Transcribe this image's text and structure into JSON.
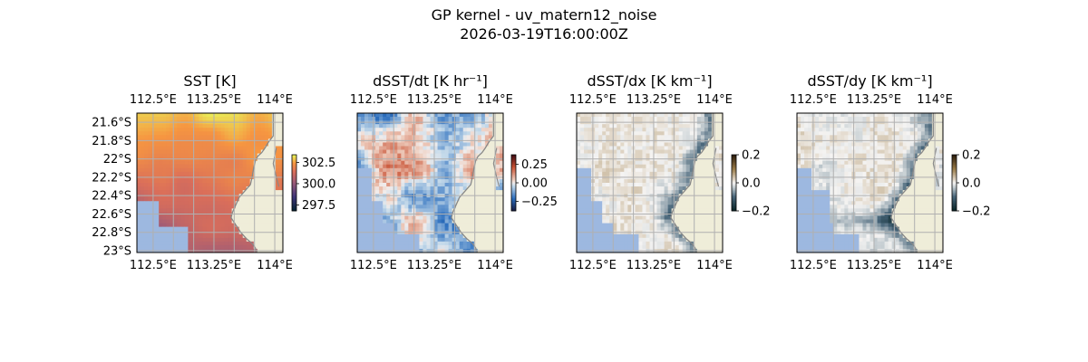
{
  "figure": {
    "title_line1": "GP kernel - uv_matern12_noise",
    "title_line2": "2026-03-19T16:00:00Z"
  },
  "chart_data": [
    {
      "type": "heatmap",
      "title": "SST [K]",
      "x_ticks": [
        "112.5°E",
        "113.25°E",
        "114°E"
      ],
      "y_ticks": [
        "21.6°S",
        "21.8°S",
        "22°S",
        "22.2°S",
        "22.4°S",
        "22.6°S",
        "22.8°S",
        "23°S"
      ],
      "xlim": [
        112.3,
        114.1
      ],
      "ylim": [
        -23.02,
        -21.5
      ],
      "colorbar": {
        "ticks": [
          "302.5",
          "300.0",
          "297.5"
        ],
        "range": [
          296.8,
          303.4
        ]
      },
      "colormap": "thermal",
      "colors": {
        "land": "#efedd9",
        "nodata": "#9db8e0",
        "coastline": "#888888"
      }
    },
    {
      "type": "heatmap",
      "title": "dSST/dt [K hr⁻¹]",
      "x_ticks": [
        "112.5°E",
        "113.25°E",
        "114°E"
      ],
      "top_x_ticks": [
        "112.5°E",
        "113.25°E",
        "114°E"
      ],
      "xlim": [
        112.3,
        114.1
      ],
      "ylim": [
        -23.02,
        -21.5
      ],
      "colorbar": {
        "ticks": [
          "0.25",
          "0.00",
          "−0.25"
        ],
        "range": [
          -0.38,
          0.38
        ]
      },
      "colormap": "balance"
    },
    {
      "type": "heatmap",
      "title": "dSST/dx [K km⁻¹]",
      "x_ticks": [
        "112.5°E",
        "113.25°E",
        "114°E"
      ],
      "top_x_ticks": [
        "112.5°E",
        "113.25°E",
        "114°E"
      ],
      "xlim": [
        112.3,
        114.1
      ],
      "ylim": [
        -23.02,
        -21.5
      ],
      "colorbar": {
        "ticks": [
          "0.2",
          "0.0",
          "−0.2"
        ],
        "range": [
          -0.2,
          0.2
        ]
      },
      "colormap": "diff"
    },
    {
      "type": "heatmap",
      "title": "dSST/dy [K km⁻¹]",
      "x_ticks": [
        "112.5°E",
        "113.25°E",
        "114°E"
      ],
      "top_x_ticks": [
        "112.5°E",
        "113.25°E",
        "114°E"
      ],
      "xlim": [
        112.3,
        114.1
      ],
      "ylim": [
        -23.02,
        -21.5
      ],
      "colorbar": {
        "ticks": [
          "0.2",
          "0.0",
          "−0.2"
        ],
        "range": [
          -0.2,
          0.2
        ]
      },
      "colormap": "diff"
    }
  ]
}
